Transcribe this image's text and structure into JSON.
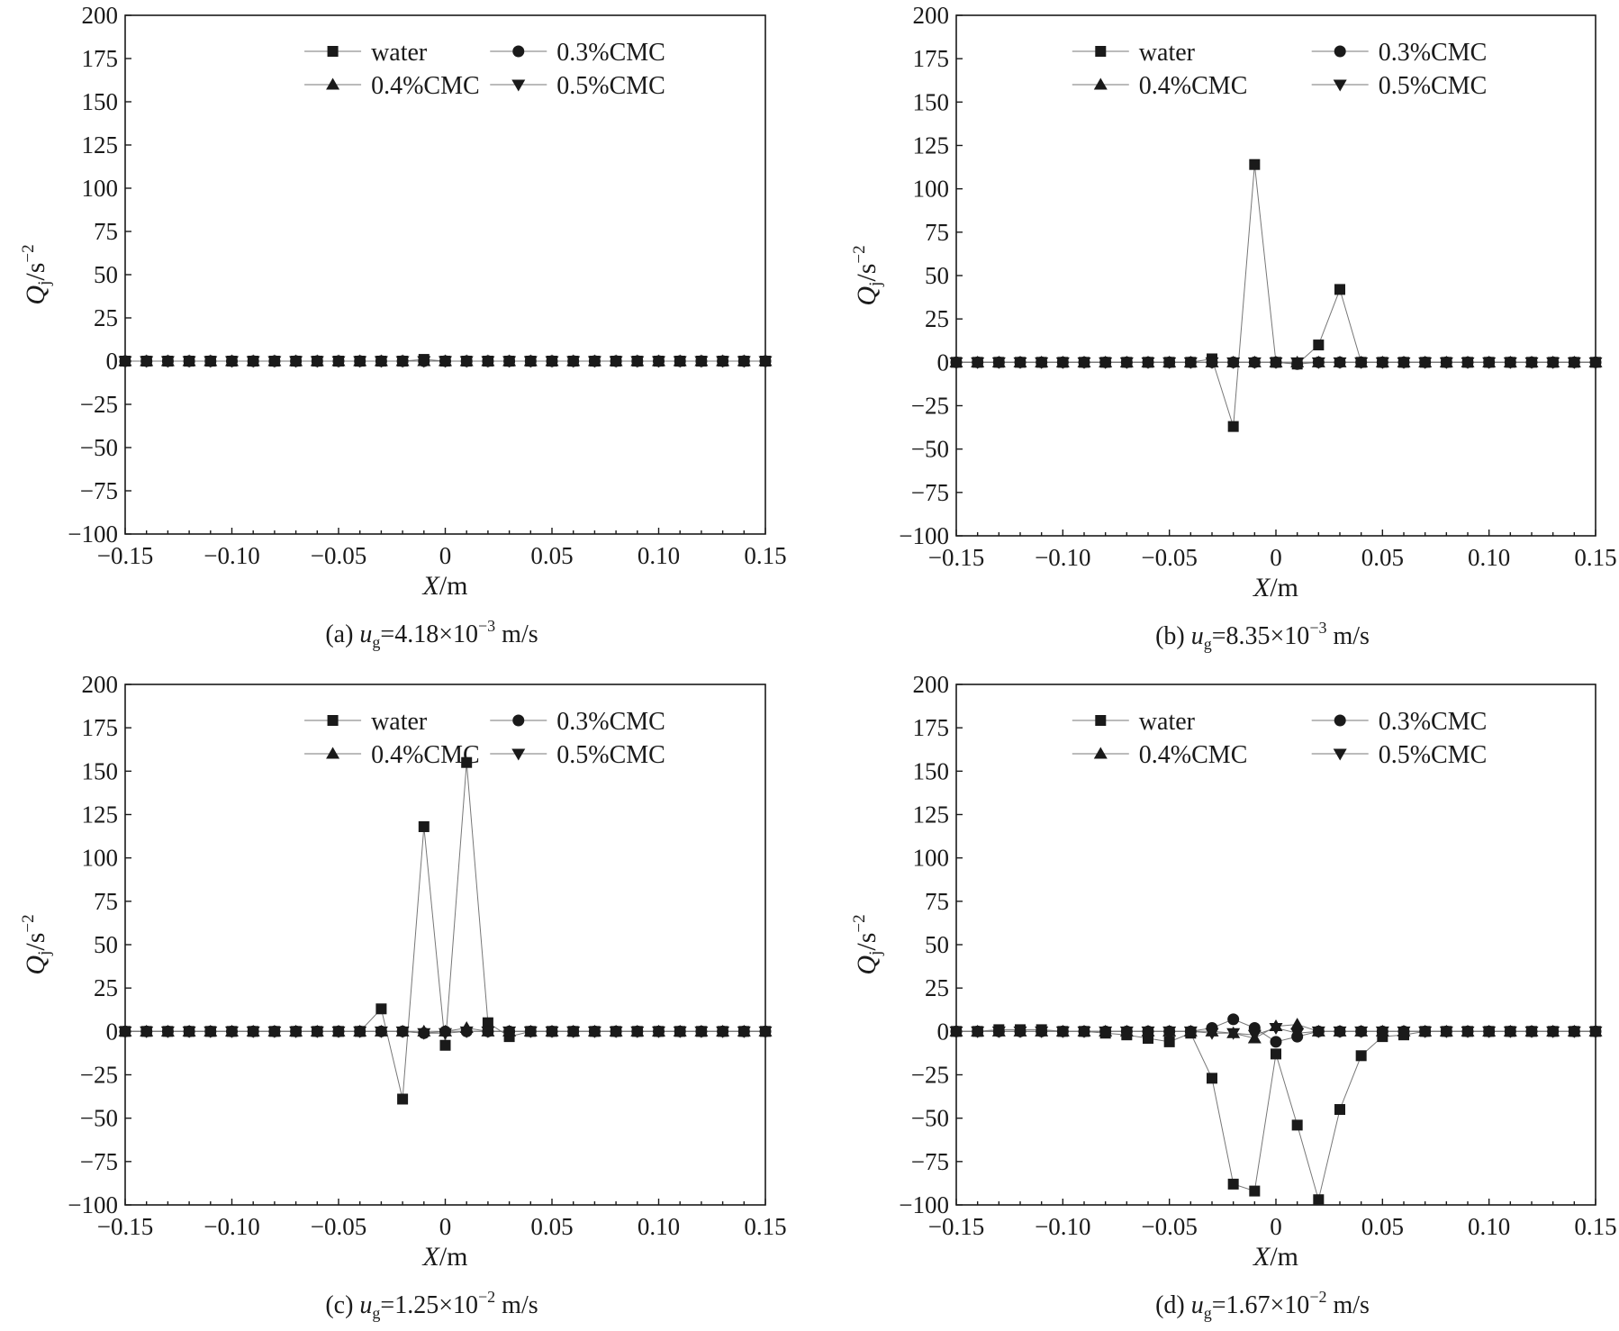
{
  "figure": {
    "colors": {
      "series": "#1a1a1a",
      "line": "#777777",
      "axis": "#1a1a1a"
    },
    "series_names": [
      "water",
      "0.3%CMC",
      "0.4%CMC",
      "0.5%CMC"
    ],
    "markers": [
      "square",
      "circle",
      "triangle-up",
      "triangle-down"
    ]
  },
  "chart_data": [
    {
      "type": "line",
      "id": "a",
      "caption": {
        "prefix": "(a) ",
        "var": "u",
        "sub": "g",
        "value": "=4.18×10",
        "exp": "−3",
        "unit": " m/s"
      },
      "xlabel": {
        "var": "X",
        "unit": "/m"
      },
      "ylabel": {
        "var": "Q",
        "sub": "j",
        "unit": "/s",
        "exp": "−2"
      },
      "xlim": [
        -0.15,
        0.15
      ],
      "ylim": [
        -100,
        200
      ],
      "xticks": [
        -0.15,
        -0.1,
        -0.05,
        0,
        0.05,
        0.1,
        0.15
      ],
      "xtick_labels": [
        "−0.15",
        "−0.10",
        "−0.05",
        "0",
        "0.05",
        "0.10",
        "0.15"
      ],
      "yticks": [
        -100,
        -75,
        -50,
        -25,
        0,
        25,
        50,
        75,
        100,
        125,
        150,
        175,
        200
      ],
      "ytick_labels": [
        "−100",
        "−75",
        "−50",
        "−25",
        "0",
        "25",
        "50",
        "75",
        "100",
        "125",
        "150",
        "175",
        "200"
      ],
      "legend": {
        "placement": "top-center"
      },
      "x": [
        -0.15,
        -0.14,
        -0.13,
        -0.12,
        -0.11,
        -0.1,
        -0.09,
        -0.08,
        -0.07,
        -0.06,
        -0.05,
        -0.04,
        -0.03,
        -0.02,
        -0.01,
        0.0,
        0.01,
        0.02,
        0.03,
        0.04,
        0.05,
        0.06,
        0.07,
        0.08,
        0.09,
        0.1,
        0.11,
        0.12,
        0.13,
        0.14,
        0.15
      ],
      "series": [
        {
          "name": "water",
          "marker": "square",
          "values": [
            0,
            0,
            0,
            0,
            0,
            0,
            0,
            0,
            0,
            0,
            0,
            0,
            0,
            0,
            1,
            0,
            0,
            0,
            0,
            0,
            0,
            0,
            0,
            0,
            0,
            0,
            0,
            0,
            0,
            0,
            0
          ]
        },
        {
          "name": "0.3%CMC",
          "marker": "circle",
          "values": [
            0,
            0,
            0,
            0,
            0,
            0,
            0,
            0,
            0,
            0,
            0,
            0,
            0,
            0,
            0,
            0,
            0,
            0,
            0,
            0,
            0,
            0,
            0,
            0,
            0,
            0,
            0,
            0,
            0,
            0,
            0
          ]
        },
        {
          "name": "0.4%CMC",
          "marker": "triangle-up",
          "values": [
            0,
            0,
            0,
            0,
            0,
            0,
            0,
            0,
            0,
            0,
            0,
            0,
            0,
            0,
            0,
            0,
            0,
            0,
            0,
            0,
            0,
            0,
            0,
            0,
            0,
            0,
            0,
            0,
            0,
            0,
            0
          ]
        },
        {
          "name": "0.5%CMC",
          "marker": "triangle-down",
          "values": [
            0,
            0,
            0,
            0,
            0,
            0,
            0,
            0,
            0,
            0,
            0,
            0,
            0,
            0,
            0,
            0,
            0,
            0,
            0,
            0,
            0,
            0,
            0,
            0,
            0,
            0,
            0,
            0,
            0,
            0,
            0
          ]
        }
      ]
    },
    {
      "type": "line",
      "id": "b",
      "caption": {
        "prefix": "(b) ",
        "var": "u",
        "sub": "g",
        "value": "=8.35×10",
        "exp": "−3",
        "unit": " m/s"
      },
      "xlabel": {
        "var": "X",
        "unit": "/m"
      },
      "ylabel": {
        "var": "Q",
        "sub": "j",
        "unit": "/s",
        "exp": "−2"
      },
      "xlim": [
        -0.15,
        0.15
      ],
      "ylim": [
        -100,
        200
      ],
      "xticks": [
        -0.15,
        -0.1,
        -0.05,
        0,
        0.05,
        0.1,
        0.15
      ],
      "xtick_labels": [
        "−0.15",
        "−0.10",
        "−0.05",
        "0",
        "0.05",
        "0.10",
        "0.15"
      ],
      "yticks": [
        -100,
        -75,
        -50,
        -25,
        0,
        25,
        50,
        75,
        100,
        125,
        150,
        175,
        200
      ],
      "ytick_labels": [
        "−100",
        "−75",
        "−50",
        "−25",
        "0",
        "25",
        "50",
        "75",
        "100",
        "125",
        "150",
        "175",
        "200"
      ],
      "legend": {
        "placement": "top-center"
      },
      "x": [
        -0.15,
        -0.14,
        -0.13,
        -0.12,
        -0.11,
        -0.1,
        -0.09,
        -0.08,
        -0.07,
        -0.06,
        -0.05,
        -0.04,
        -0.03,
        -0.02,
        -0.01,
        0.0,
        0.01,
        0.02,
        0.03,
        0.04,
        0.05,
        0.06,
        0.07,
        0.08,
        0.09,
        0.1,
        0.11,
        0.12,
        0.13,
        0.14,
        0.15
      ],
      "series": [
        {
          "name": "water",
          "marker": "square",
          "values": [
            0,
            0,
            0,
            0,
            0,
            0,
            0,
            0,
            0,
            0,
            0,
            0,
            2,
            -37,
            114,
            0,
            -1,
            10,
            42,
            0,
            0,
            0,
            0,
            0,
            0,
            0,
            0,
            0,
            0,
            0,
            0
          ]
        },
        {
          "name": "0.3%CMC",
          "marker": "circle",
          "values": [
            0,
            0,
            0,
            0,
            0,
            0,
            0,
            0,
            0,
            0,
            0,
            0,
            0,
            0,
            0,
            0,
            -1,
            0,
            0,
            0,
            0,
            0,
            0,
            0,
            0,
            0,
            0,
            0,
            0,
            0,
            0
          ]
        },
        {
          "name": "0.4%CMC",
          "marker": "triangle-up",
          "values": [
            0,
            0,
            0,
            0,
            0,
            0,
            0,
            0,
            0,
            0,
            0,
            0,
            0,
            0,
            0,
            0,
            0,
            0,
            0,
            0,
            0,
            0,
            0,
            0,
            0,
            0,
            0,
            0,
            0,
            0,
            0
          ]
        },
        {
          "name": "0.5%CMC",
          "marker": "triangle-down",
          "values": [
            0,
            0,
            0,
            0,
            0,
            0,
            0,
            0,
            0,
            0,
            0,
            0,
            0,
            0,
            0,
            0,
            0,
            0,
            0,
            0,
            0,
            0,
            0,
            0,
            0,
            0,
            0,
            0,
            0,
            0,
            0
          ]
        }
      ]
    },
    {
      "type": "line",
      "id": "c",
      "caption": {
        "prefix": "(c) ",
        "var": "u",
        "sub": "g",
        "value": "=1.25×10",
        "exp": "−2",
        "unit": " m/s"
      },
      "xlabel": {
        "var": "X",
        "unit": "/m"
      },
      "ylabel": {
        "var": "Q",
        "sub": "j",
        "unit": "/s",
        "exp": "−2"
      },
      "xlim": [
        -0.15,
        0.15
      ],
      "ylim": [
        -100,
        200
      ],
      "xticks": [
        -0.15,
        -0.1,
        -0.05,
        0,
        0.05,
        0.1,
        0.15
      ],
      "xtick_labels": [
        "−0.15",
        "−0.10",
        "−0.05",
        "0",
        "0.05",
        "0.10",
        "0.15"
      ],
      "yticks": [
        -100,
        -75,
        -50,
        -25,
        0,
        25,
        50,
        75,
        100,
        125,
        150,
        175,
        200
      ],
      "ytick_labels": [
        "−100",
        "−75",
        "−50",
        "−25",
        "0",
        "25",
        "50",
        "75",
        "100",
        "125",
        "150",
        "175",
        "200"
      ],
      "legend": {
        "placement": "top-center"
      },
      "x": [
        -0.15,
        -0.14,
        -0.13,
        -0.12,
        -0.11,
        -0.1,
        -0.09,
        -0.08,
        -0.07,
        -0.06,
        -0.05,
        -0.04,
        -0.03,
        -0.02,
        -0.01,
        0.0,
        0.01,
        0.02,
        0.03,
        0.04,
        0.05,
        0.06,
        0.07,
        0.08,
        0.09,
        0.1,
        0.11,
        0.12,
        0.13,
        0.14,
        0.15
      ],
      "series": [
        {
          "name": "water",
          "marker": "square",
          "values": [
            0,
            0,
            0,
            0,
            0,
            0,
            0,
            0,
            0,
            0,
            0,
            0,
            13,
            -39,
            118,
            -8,
            155,
            5,
            -3,
            0,
            0,
            0,
            0,
            0,
            0,
            0,
            0,
            0,
            0,
            0,
            0
          ]
        },
        {
          "name": "0.3%CMC",
          "marker": "circle",
          "values": [
            0,
            0,
            0,
            0,
            0,
            0,
            0,
            0,
            0,
            0,
            0,
            0,
            0,
            0,
            -1,
            0,
            0,
            0,
            0,
            0,
            0,
            0,
            0,
            0,
            0,
            0,
            0,
            0,
            0,
            0,
            0
          ]
        },
        {
          "name": "0.4%CMC",
          "marker": "triangle-up",
          "values": [
            0,
            0,
            0,
            0,
            0,
            0,
            0,
            0,
            0,
            0,
            0,
            0,
            0,
            0,
            0,
            0,
            2,
            0,
            0,
            0,
            0,
            0,
            0,
            0,
            0,
            0,
            0,
            0,
            0,
            0,
            0
          ]
        },
        {
          "name": "0.5%CMC",
          "marker": "triangle-down",
          "values": [
            0,
            0,
            0,
            0,
            0,
            0,
            0,
            0,
            0,
            0,
            0,
            0,
            0,
            0,
            -1,
            -1,
            0,
            0,
            0,
            0,
            0,
            0,
            0,
            0,
            0,
            0,
            0,
            0,
            0,
            0,
            0
          ]
        }
      ]
    },
    {
      "type": "line",
      "id": "d",
      "caption": {
        "prefix": "(d) ",
        "var": "u",
        "sub": "g",
        "value": "=1.67×10",
        "exp": "−2",
        "unit": " m/s"
      },
      "xlabel": {
        "var": "X",
        "unit": "/m"
      },
      "ylabel": {
        "var": "Q",
        "sub": "j",
        "unit": "/s",
        "exp": "−2"
      },
      "xlim": [
        -0.15,
        0.15
      ],
      "ylim": [
        -100,
        200
      ],
      "xticks": [
        -0.15,
        -0.1,
        -0.05,
        0,
        0.05,
        0.1,
        0.15
      ],
      "xtick_labels": [
        "−0.15",
        "−0.10",
        "−0.05",
        "0",
        "0.05",
        "0.10",
        "0.15"
      ],
      "yticks": [
        -100,
        -75,
        -50,
        -25,
        0,
        25,
        50,
        75,
        100,
        125,
        150,
        175,
        200
      ],
      "ytick_labels": [
        "−100",
        "−75",
        "−50",
        "−25",
        "0",
        "25",
        "50",
        "75",
        "100",
        "125",
        "150",
        "175",
        "200"
      ],
      "legend": {
        "placement": "top-center"
      },
      "x": [
        -0.15,
        -0.14,
        -0.13,
        -0.12,
        -0.11,
        -0.1,
        -0.09,
        -0.08,
        -0.07,
        -0.06,
        -0.05,
        -0.04,
        -0.03,
        -0.02,
        -0.01,
        0.0,
        0.01,
        0.02,
        0.03,
        0.04,
        0.05,
        0.06,
        0.07,
        0.08,
        0.09,
        0.1,
        0.11,
        0.12,
        0.13,
        0.14,
        0.15
      ],
      "series": [
        {
          "name": "water",
          "marker": "square",
          "values": [
            0,
            0,
            1,
            1,
            1,
            0,
            0,
            -1,
            -2,
            -4,
            -6,
            -1,
            -27,
            -88,
            -92,
            -13,
            -54,
            -97,
            -45,
            -14,
            -3,
            -2,
            0,
            0,
            0,
            0,
            0,
            0,
            0,
            0,
            0
          ]
        },
        {
          "name": "0.3%CMC",
          "marker": "circle",
          "values": [
            0,
            0,
            0,
            0,
            0,
            0,
            0,
            0,
            0,
            0,
            0,
            0,
            2,
            7,
            2,
            -6,
            -3,
            0,
            0,
            0,
            0,
            0,
            0,
            0,
            0,
            0,
            0,
            0,
            0,
            0,
            0
          ]
        },
        {
          "name": "0.4%CMC",
          "marker": "triangle-up",
          "values": [
            0,
            0,
            0,
            0,
            0,
            0,
            0,
            0,
            0,
            0,
            0,
            0,
            0,
            -1,
            -4,
            3,
            4,
            0,
            0,
            0,
            0,
            0,
            0,
            0,
            0,
            0,
            0,
            0,
            0,
            0,
            0
          ]
        },
        {
          "name": "0.5%CMC",
          "marker": "triangle-down",
          "values": [
            0,
            0,
            0,
            0,
            0,
            0,
            0,
            0,
            0,
            0,
            0,
            0,
            -1,
            -1,
            -2,
            2,
            -1,
            0,
            0,
            0,
            0,
            0,
            0,
            0,
            0,
            0,
            0,
            0,
            0,
            0,
            0
          ]
        }
      ]
    }
  ]
}
